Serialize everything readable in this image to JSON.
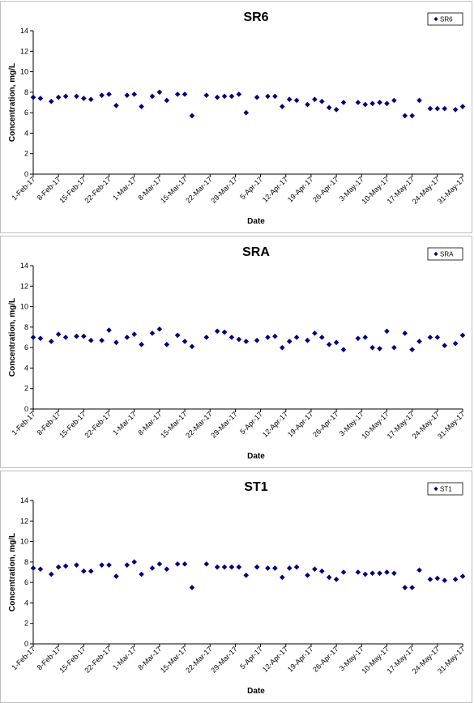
{
  "chart_data": [
    {
      "type": "scatter",
      "title": "SR6",
      "xlabel": "Date",
      "ylabel": "Concentration, mg/L",
      "ylim": [
        0,
        14
      ],
      "yticks": [
        0,
        2,
        4,
        6,
        8,
        10,
        12,
        14
      ],
      "xlim": [
        "2017-02-01",
        "2017-05-31"
      ],
      "xticks": [
        "1-Feb-17",
        "8-Feb-17",
        "15-Feb-17",
        "22-Feb-17",
        "1-Mar-17",
        "8-Mar-17",
        "15-Mar-17",
        "22-Mar-17",
        "29-Mar-17",
        "5-Apr-17",
        "12-Apr-17",
        "19-Apr-17",
        "26-Apr-17",
        "3-May-17",
        "10-May-17",
        "17-May-17",
        "24-May-17",
        "31-May-17"
      ],
      "grid": false,
      "legend": "top-right",
      "series": [
        {
          "name": "SR6",
          "color": "#000080",
          "x": [
            "2017-02-01",
            "2017-02-03",
            "2017-02-06",
            "2017-02-08",
            "2017-02-10",
            "2017-02-13",
            "2017-02-15",
            "2017-02-17",
            "2017-02-20",
            "2017-02-22",
            "2017-02-24",
            "2017-02-27",
            "2017-03-01",
            "2017-03-03",
            "2017-03-06",
            "2017-03-08",
            "2017-03-10",
            "2017-03-13",
            "2017-03-15",
            "2017-03-17",
            "2017-03-21",
            "2017-03-24",
            "2017-03-26",
            "2017-03-28",
            "2017-03-30",
            "2017-04-01",
            "2017-04-04",
            "2017-04-07",
            "2017-04-09",
            "2017-04-11",
            "2017-04-13",
            "2017-04-15",
            "2017-04-18",
            "2017-04-20",
            "2017-04-22",
            "2017-04-24",
            "2017-04-26",
            "2017-04-28",
            "2017-05-02",
            "2017-05-04",
            "2017-05-06",
            "2017-05-08",
            "2017-05-10",
            "2017-05-12",
            "2017-05-15",
            "2017-05-17",
            "2017-05-19",
            "2017-05-22",
            "2017-05-24",
            "2017-05-26",
            "2017-05-29",
            "2017-05-31"
          ],
          "y": [
            7.5,
            7.4,
            7.1,
            7.5,
            7.6,
            7.6,
            7.4,
            7.3,
            7.7,
            7.8,
            6.7,
            7.7,
            7.8,
            6.6,
            7.6,
            8.0,
            7.2,
            7.8,
            7.8,
            5.7,
            7.7,
            7.5,
            7.6,
            7.6,
            7.8,
            6.0,
            7.5,
            7.6,
            7.6,
            6.6,
            7.3,
            7.2,
            6.8,
            7.3,
            7.1,
            6.5,
            6.3,
            7.0,
            7.0,
            6.8,
            6.9,
            7.0,
            6.9,
            7.2,
            5.7,
            5.7,
            7.2,
            6.4,
            6.4,
            6.4,
            6.3,
            6.6
          ]
        }
      ]
    },
    {
      "type": "scatter",
      "title": "SRA",
      "xlabel": "Date",
      "ylabel": "Concentration, mg/L",
      "ylim": [
        0,
        14
      ],
      "yticks": [
        0,
        2,
        4,
        6,
        8,
        10,
        12,
        14
      ],
      "xlim": [
        "2017-02-01",
        "2017-05-31"
      ],
      "xticks": [
        "1-Feb-17",
        "8-Feb-17",
        "15-Feb-17",
        "22-Feb-17",
        "1-Mar-17",
        "8-Mar-17",
        "15-Mar-17",
        "22-Mar-17",
        "29-Mar-17",
        "5-Apr-17",
        "12-Apr-17",
        "19-Apr-17",
        "26-Apr-17",
        "3-May-17",
        "10-May-17",
        "17-May-17",
        "24-May-17",
        "31-May-17"
      ],
      "grid": false,
      "legend": "top-right",
      "series": [
        {
          "name": "SRA",
          "color": "#000080",
          "x": [
            "2017-02-01",
            "2017-02-03",
            "2017-02-06",
            "2017-02-08",
            "2017-02-10",
            "2017-02-13",
            "2017-02-15",
            "2017-02-17",
            "2017-02-20",
            "2017-02-22",
            "2017-02-24",
            "2017-02-27",
            "2017-03-01",
            "2017-03-03",
            "2017-03-06",
            "2017-03-08",
            "2017-03-10",
            "2017-03-13",
            "2017-03-15",
            "2017-03-17",
            "2017-03-21",
            "2017-03-24",
            "2017-03-26",
            "2017-03-28",
            "2017-03-30",
            "2017-04-01",
            "2017-04-04",
            "2017-04-07",
            "2017-04-09",
            "2017-04-11",
            "2017-04-13",
            "2017-04-15",
            "2017-04-18",
            "2017-04-20",
            "2017-04-22",
            "2017-04-24",
            "2017-04-26",
            "2017-04-28",
            "2017-05-02",
            "2017-05-04",
            "2017-05-06",
            "2017-05-08",
            "2017-05-10",
            "2017-05-12",
            "2017-05-15",
            "2017-05-17",
            "2017-05-19",
            "2017-05-22",
            "2017-05-24",
            "2017-05-26",
            "2017-05-29",
            "2017-05-31"
          ],
          "y": [
            7.0,
            6.9,
            6.6,
            7.3,
            7.0,
            7.1,
            7.1,
            6.7,
            6.7,
            7.7,
            6.5,
            7.0,
            7.3,
            6.3,
            7.4,
            7.8,
            6.3,
            7.2,
            6.6,
            6.1,
            7.0,
            7.6,
            7.5,
            7.0,
            6.8,
            6.6,
            6.7,
            7.0,
            7.1,
            6.0,
            6.6,
            7.0,
            6.7,
            7.4,
            7.0,
            6.3,
            6.5,
            5.8,
            6.9,
            7.0,
            6.0,
            5.9,
            7.6,
            6.0,
            7.4,
            5.8,
            6.6,
            7.0,
            7.0,
            6.2,
            6.4,
            7.2
          ]
        }
      ]
    },
    {
      "type": "scatter",
      "title": "ST1",
      "xlabel": "Date",
      "ylabel": "Concentration, mg/L",
      "ylim": [
        0,
        14
      ],
      "yticks": [
        0,
        2,
        4,
        6,
        8,
        10,
        12,
        14
      ],
      "xlim": [
        "2017-02-01",
        "2017-05-31"
      ],
      "xticks": [
        "1-Feb-17",
        "8-Feb-17",
        "15-Feb-17",
        "22-Feb-17",
        "1-Mar-17",
        "8-Mar-17",
        "15-Mar-17",
        "22-Mar-17",
        "29-Mar-17",
        "5-Apr-17",
        "12-Apr-17",
        "19-Apr-17",
        "26-Apr-17",
        "3-May-17",
        "10-May-17",
        "17-May-17",
        "24-May-17",
        "31-May-17"
      ],
      "grid": false,
      "legend": "top-right",
      "series": [
        {
          "name": "ST1",
          "color": "#000080",
          "x": [
            "2017-02-01",
            "2017-02-03",
            "2017-02-06",
            "2017-02-08",
            "2017-02-10",
            "2017-02-13",
            "2017-02-15",
            "2017-02-17",
            "2017-02-20",
            "2017-02-22",
            "2017-02-24",
            "2017-02-27",
            "2017-03-01",
            "2017-03-03",
            "2017-03-06",
            "2017-03-08",
            "2017-03-10",
            "2017-03-13",
            "2017-03-15",
            "2017-03-17",
            "2017-03-21",
            "2017-03-24",
            "2017-03-26",
            "2017-03-28",
            "2017-03-30",
            "2017-04-01",
            "2017-04-04",
            "2017-04-07",
            "2017-04-09",
            "2017-04-11",
            "2017-04-13",
            "2017-04-15",
            "2017-04-18",
            "2017-04-20",
            "2017-04-22",
            "2017-04-24",
            "2017-04-26",
            "2017-04-28",
            "2017-05-02",
            "2017-05-04",
            "2017-05-06",
            "2017-05-08",
            "2017-05-10",
            "2017-05-12",
            "2017-05-15",
            "2017-05-17",
            "2017-05-19",
            "2017-05-22",
            "2017-05-24",
            "2017-05-26",
            "2017-05-29",
            "2017-05-31"
          ],
          "y": [
            7.4,
            7.3,
            6.8,
            7.5,
            7.6,
            7.7,
            7.1,
            7.1,
            7.7,
            7.7,
            6.6,
            7.7,
            8.0,
            6.8,
            7.4,
            7.8,
            7.3,
            7.8,
            7.8,
            5.5,
            7.8,
            7.5,
            7.5,
            7.5,
            7.5,
            6.7,
            7.5,
            7.4,
            7.4,
            6.5,
            7.4,
            7.5,
            6.7,
            7.3,
            7.1,
            6.5,
            6.3,
            7.0,
            7.0,
            6.8,
            6.9,
            6.9,
            7.0,
            6.9,
            5.5,
            5.5,
            7.2,
            6.3,
            6.4,
            6.2,
            6.3,
            6.6
          ]
        }
      ]
    }
  ]
}
